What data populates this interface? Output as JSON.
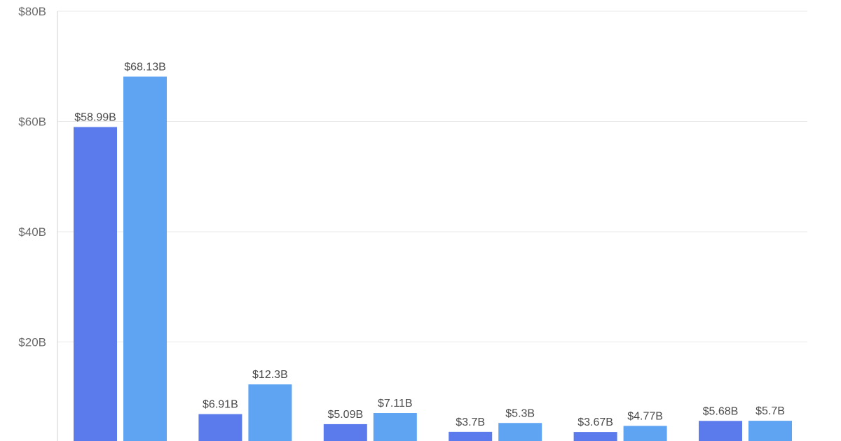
{
  "chart_data": {
    "type": "bar",
    "title": "",
    "xlabel": "",
    "ylabel": "",
    "ylim": [
      0,
      80
    ],
    "y_ticks": [
      {
        "value": 20,
        "label": "$20B"
      },
      {
        "value": 40,
        "label": "$40B"
      },
      {
        "value": 60,
        "label": "$60B"
      },
      {
        "value": 80,
        "label": "$80B"
      }
    ],
    "grid": true,
    "categories": [
      "",
      "",
      "",
      "",
      "",
      ""
    ],
    "series": [
      {
        "color": "#5b7bec",
        "values": [
          58.99,
          6.91,
          5.09,
          3.7,
          3.67,
          5.68
        ],
        "labels": [
          "$58.99B",
          "$6.91B",
          "$5.09B",
          "$3.7B",
          "$3.67B",
          "$5.68B"
        ]
      },
      {
        "color": "#5fa3f3",
        "values": [
          68.13,
          12.3,
          7.11,
          5.3,
          4.77,
          5.7
        ],
        "labels": [
          "$68.13B",
          "$12.3B",
          "$7.11B",
          "$5.3B",
          "$4.77B",
          "$5.7B"
        ]
      }
    ]
  }
}
